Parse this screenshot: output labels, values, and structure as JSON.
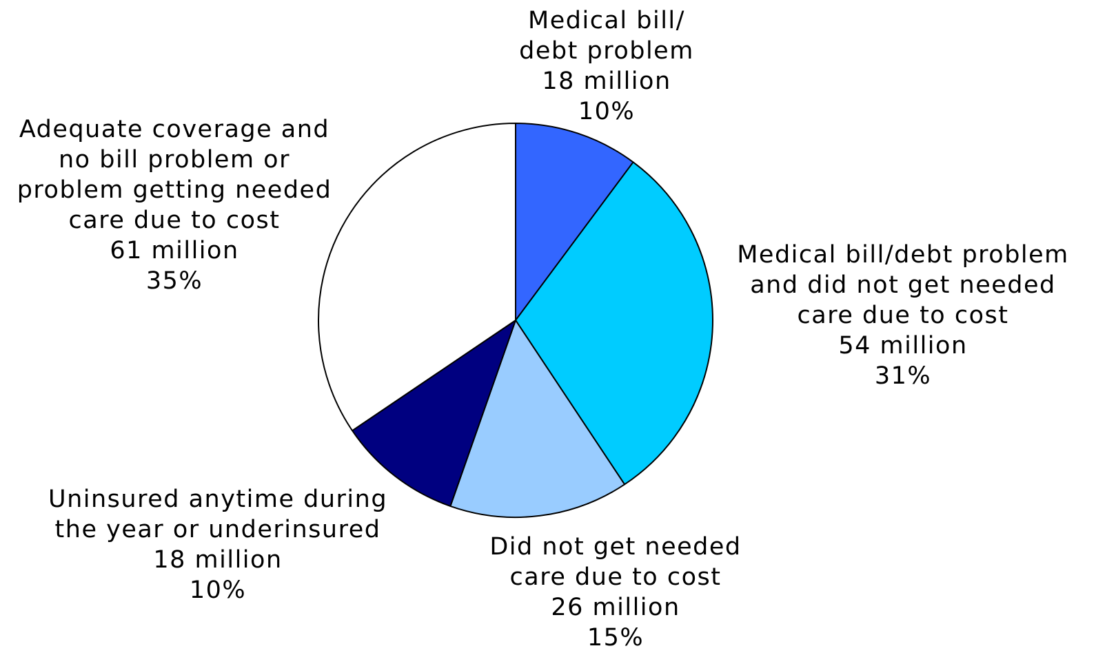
{
  "chart_data": {
    "type": "pie",
    "start_angle": "12 o'clock",
    "direction": "clockwise",
    "slices": [
      {
        "label_lines": [
          "Medical bill/",
          "debt problem"
        ],
        "value_label": "18 million",
        "percent_label": "10%",
        "value": 18,
        "percent": 10,
        "color": "#3366FF"
      },
      {
        "label_lines": [
          "Medical bill/debt problem",
          "and did not get needed",
          "care due to cost"
        ],
        "value_label": "54 million",
        "percent_label": "31%",
        "value": 54,
        "percent": 31,
        "color": "#00CCFF"
      },
      {
        "label_lines": [
          "Did not get needed",
          "care due to cost"
        ],
        "value_label": "26 million",
        "percent_label": "15%",
        "value": 26,
        "percent": 15,
        "color": "#99CCFF"
      },
      {
        "label_lines": [
          "Uninsured anytime during",
          "the year or underinsured"
        ],
        "value_label": "18 million",
        "percent_label": "10%",
        "value": 18,
        "percent": 10,
        "color": "#000080"
      },
      {
        "label_lines": [
          "Adequate coverage and",
          "no bill problem or",
          "problem getting needed",
          "care due to cost"
        ],
        "value_label": "61 million",
        "percent_label": "35%",
        "value": 61,
        "percent": 35,
        "color": "#FFFFFF"
      }
    ]
  }
}
